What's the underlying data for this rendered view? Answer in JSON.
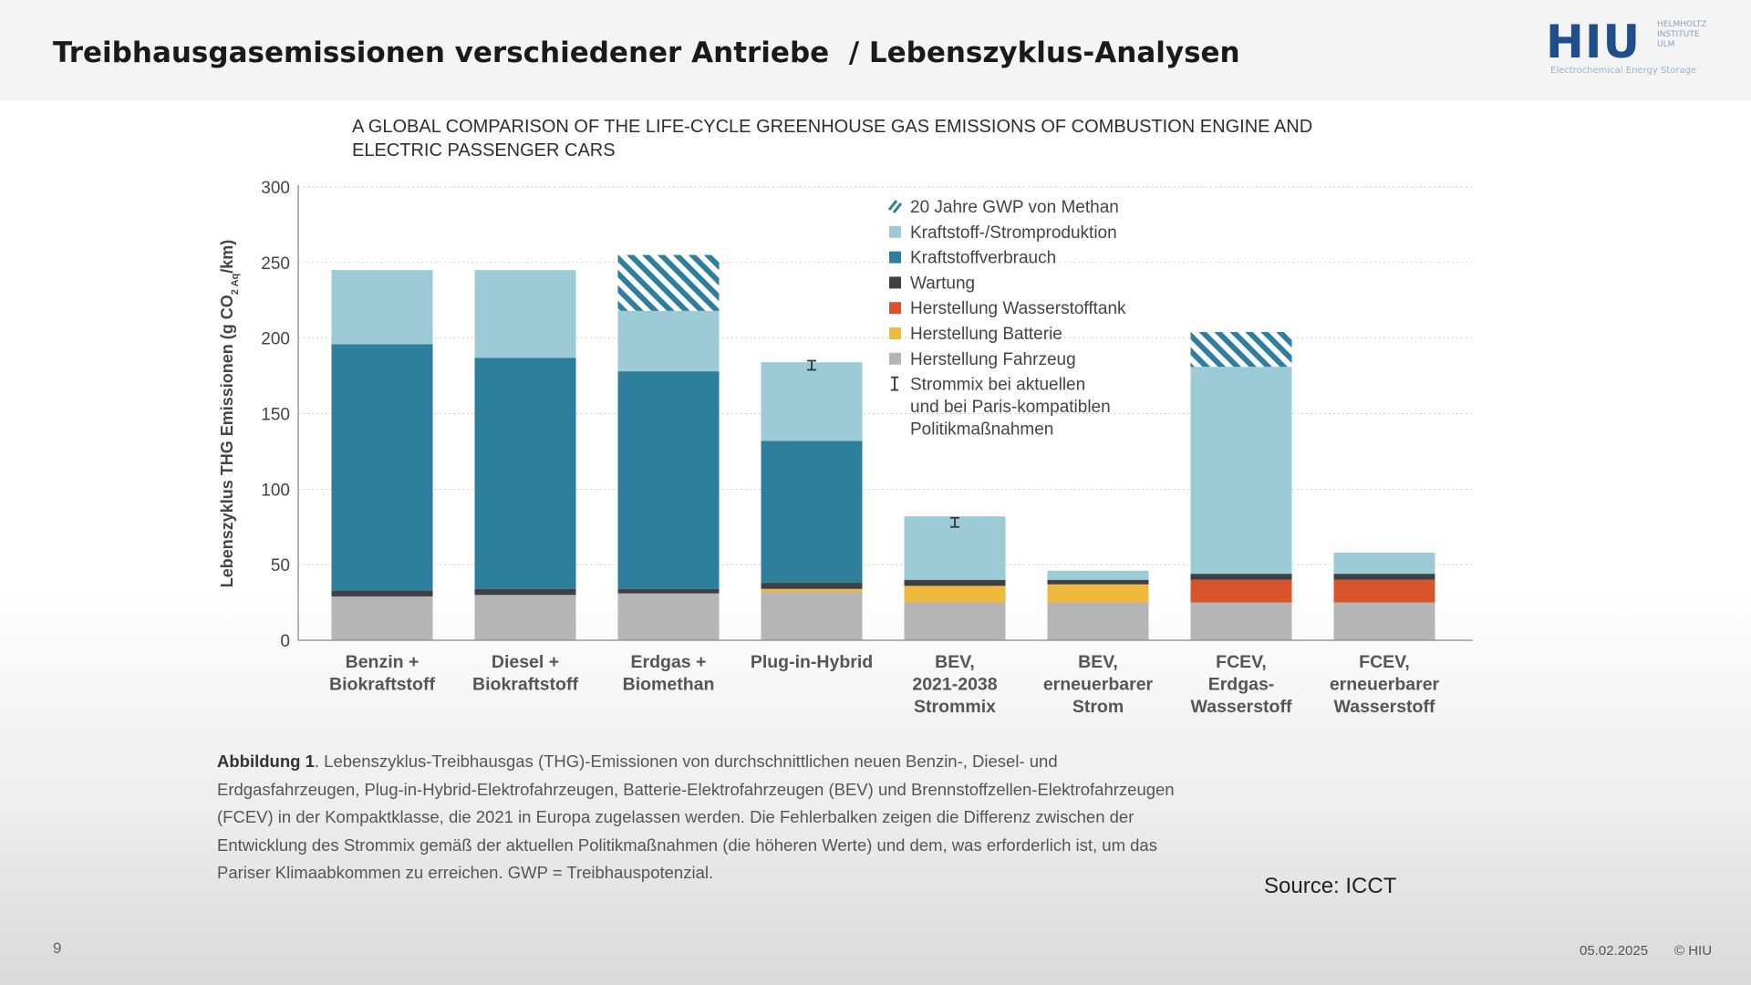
{
  "slide": {
    "title": "Treibhausgasemissionen verschiedener Antriebe  / Lebenszyklus-Analysen",
    "logo_text": "HIU",
    "logo_side_lines": [
      "HELMHOLTZ",
      "INSTITUTE",
      "ULM"
    ],
    "logo_subtitle": "Electrochemical Energy Storage",
    "caption_bold": "Abbildung 1",
    "caption_text": ". Lebenszyklus-Treibhausgas (THG)-Emissionen von durchschnittlichen neuen Benzin-, Diesel- und Erdgasfahrzeugen, Plug-in-Hybrid-Elektrofahrzeugen, Batterie-Elektrofahrzeugen (BEV) und Brennstoffzellen-Elektrofahrzeugen (FCEV) in der Kompaktklasse, die 2021 in Europa zugelassen werden. Die Fehlerbalken zeigen die Differenz zwischen der Entwicklung des Strommix gemäß der aktuellen Politikmaßnahmen (die höheren Werte) und dem, was erforderlich ist, um das Pariser Klimaabkommen zu erreichen. GWP = Treibhauspotenzial.",
    "source": "Source: ICCT",
    "page_number": "9",
    "date": "05.02.2025",
    "copyright": "© HIU"
  },
  "chart_data": {
    "type": "bar",
    "stacked": true,
    "title": "A GLOBAL COMPARISON OF THE LIFE-CYCLE GREENHOUSE GAS EMISSIONS OF COMBUSTION ENGINE AND ELECTRIC PASSENGER CARS",
    "ylabel_parts": [
      "Lebenszyklus THG Emissionen (g CO",
      "2 Aq",
      "/km)"
    ],
    "ylim": [
      0,
      300
    ],
    "yticks": [
      0,
      50,
      100,
      150,
      200,
      250,
      300
    ],
    "grid": true,
    "legend_position": "top-right",
    "categories": [
      [
        "Benzin +",
        "Biokraftstoff"
      ],
      [
        "Diesel +",
        "Biokraftstoff"
      ],
      [
        "Erdgas +",
        "Biomethan"
      ],
      [
        "Plug-in-Hybrid"
      ],
      [
        "BEV,",
        "2021-2038",
        "Strommix"
      ],
      [
        "BEV,",
        "erneuerbarer",
        "Strom"
      ],
      [
        "FCEV,",
        "Erdgas-",
        "Wasserstoff"
      ],
      [
        "FCEV,",
        "erneuerbarer",
        "Wasserstoff"
      ]
    ],
    "series": [
      {
        "name": "Herstellung Fahrzeug",
        "color": "#b5b5b5",
        "values": [
          29,
          30,
          31,
          32,
          25,
          25,
          25,
          25
        ]
      },
      {
        "name": "Herstellung Batterie",
        "color": "#f0b83c",
        "values": [
          0,
          0,
          0,
          2,
          11,
          12,
          0,
          0
        ]
      },
      {
        "name": "Herstellung Wasserstofftank",
        "color": "#d9532c",
        "values": [
          0,
          0,
          0,
          0,
          0,
          0,
          15,
          15
        ]
      },
      {
        "name": "Wartung",
        "color": "#3d4045",
        "values": [
          4,
          4,
          3,
          4,
          4,
          3,
          4,
          4
        ]
      },
      {
        "name": "Kraftstoffverbrauch",
        "color": "#2e7f9c",
        "values": [
          163,
          153,
          144,
          94,
          0,
          0,
          0,
          0
        ]
      },
      {
        "name": "Kraftstoff-/Stromproduktion",
        "color": "#9ccbd6",
        "values": [
          49,
          58,
          40,
          52,
          42,
          6,
          137,
          14
        ]
      },
      {
        "name": "20 Jahre GWP von Methan",
        "color": "#2e7f9c",
        "pattern": "hatch",
        "values": [
          0,
          0,
          37,
          0,
          0,
          0,
          23,
          0
        ]
      }
    ],
    "error_bars": [
      null,
      null,
      null,
      182,
      78,
      null,
      null,
      null
    ],
    "legend": [
      {
        "label": "20 Jahre GWP von Methan",
        "marker": "hatch",
        "color": "#2e7f9c"
      },
      {
        "label": "Kraftstoff-/Stromproduktion",
        "marker": "square",
        "color": "#9ccbd6"
      },
      {
        "label": "Kraftstoffverbrauch",
        "marker": "square",
        "color": "#2e7f9c"
      },
      {
        "label": "Wartung",
        "marker": "square",
        "color": "#3d4045"
      },
      {
        "label": "Herstellung Wasserstofftank",
        "marker": "square",
        "color": "#d9532c"
      },
      {
        "label": "Herstellung Batterie",
        "marker": "square",
        "color": "#f0b83c"
      },
      {
        "label": "Herstellung Fahrzeug",
        "marker": "square",
        "color": "#b5b5b5"
      },
      {
        "label": [
          "Strommix bei aktuellen",
          "und bei Paris-kompatiblen",
          "Politikmaßnahmen"
        ],
        "marker": "errorbar",
        "color": "#333333"
      }
    ]
  }
}
